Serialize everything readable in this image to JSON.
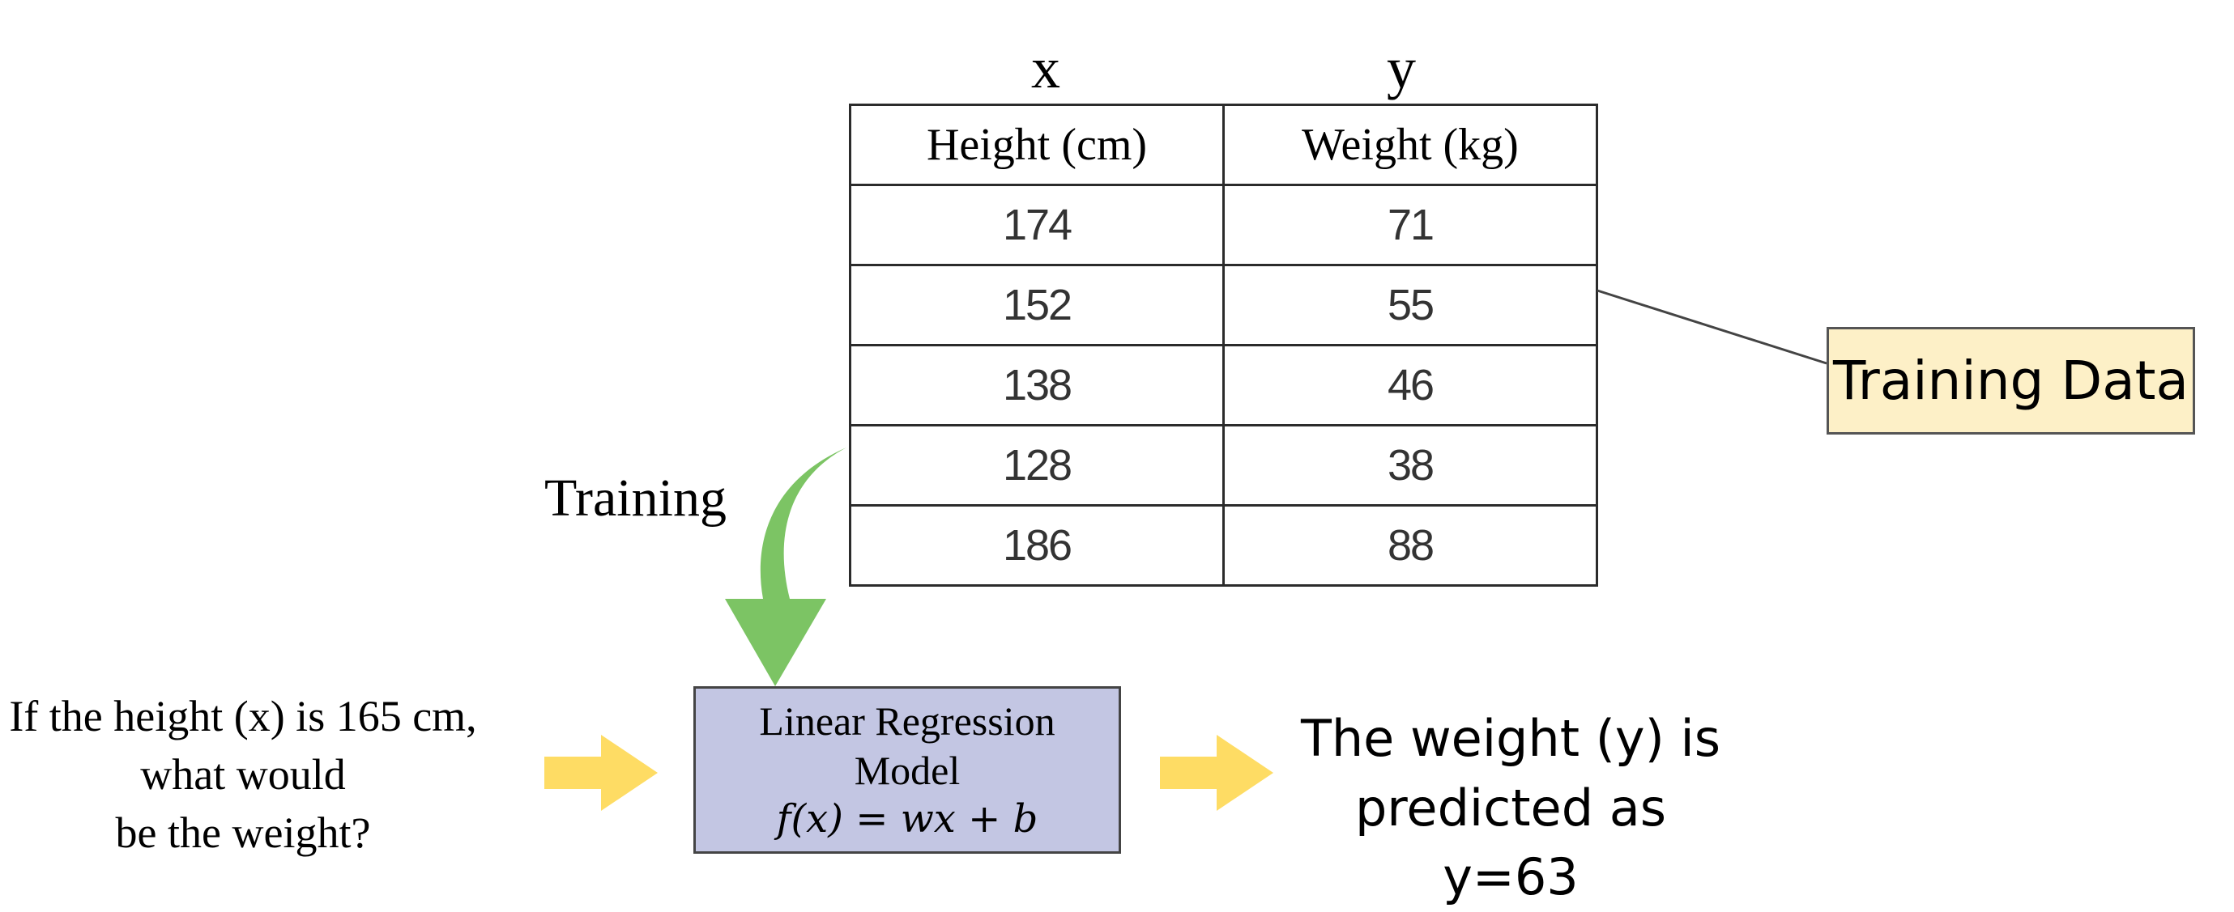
{
  "column_letters": {
    "x": "x",
    "y": "y"
  },
  "table": {
    "headers": [
      "Height (cm)",
      "Weight (kg)"
    ],
    "rows": [
      [
        "174",
        "71"
      ],
      [
        "152",
        "55"
      ],
      [
        "138",
        "46"
      ],
      [
        "128",
        "38"
      ],
      [
        "186",
        "88"
      ]
    ]
  },
  "callout": {
    "label": "Training Data"
  },
  "training_label": "Training",
  "model": {
    "line1": "Linear Regression",
    "line2": "Model",
    "formula": "f(x) = wx + b"
  },
  "question": {
    "line1": "If the height (x) is 165 cm,",
    "line2": "what would",
    "line3": "be the weight?"
  },
  "answer": {
    "line1": "The weight (y) is",
    "line2": "predicted as y=63"
  },
  "colors": {
    "arrow_yellow": "#fedc64",
    "arrow_green": "#7cc464",
    "model_fill": "#c3c6e3",
    "callout_fill": "#fdf0c7"
  }
}
